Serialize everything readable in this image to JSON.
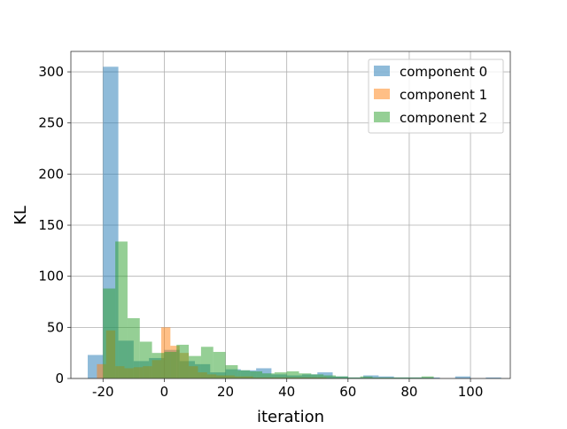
{
  "chart_data": {
    "type": "histogram",
    "title": "",
    "xlabel": "iteration",
    "ylabel": "KL",
    "xlim": [
      -30.5,
      113
    ],
    "ylim": [
      0,
      320
    ],
    "xticks": [
      "-20",
      "0",
      "20",
      "40",
      "60",
      "80",
      "100"
    ],
    "xtick_values": [
      -20,
      0,
      20,
      40,
      60,
      80,
      100
    ],
    "yticks": [
      "0",
      "50",
      "100",
      "150",
      "200",
      "250",
      "300"
    ],
    "ytick_values": [
      0,
      50,
      100,
      150,
      200,
      250,
      300
    ],
    "grid": true,
    "legend_position": "top-right",
    "series": [
      {
        "name": "component 0",
        "color": "#1f77b4",
        "opacity": 0.5,
        "bins": [
          [
            -25,
            -20,
            23
          ],
          [
            -20,
            -15,
            305
          ],
          [
            -15,
            -10,
            37
          ],
          [
            -10,
            -5,
            17
          ],
          [
            -5,
            0,
            20
          ],
          [
            0,
            5,
            28
          ],
          [
            5,
            10,
            17
          ],
          [
            10,
            15,
            14
          ],
          [
            15,
            20,
            6
          ],
          [
            20,
            25,
            9
          ],
          [
            25,
            30,
            8
          ],
          [
            30,
            35,
            10
          ],
          [
            35,
            40,
            4
          ],
          [
            40,
            45,
            3
          ],
          [
            45,
            50,
            4
          ],
          [
            50,
            55,
            6
          ],
          [
            55,
            60,
            2
          ],
          [
            60,
            65,
            1
          ],
          [
            65,
            70,
            3
          ],
          [
            70,
            75,
            2
          ],
          [
            75,
            80,
            1
          ],
          [
            80,
            85,
            1
          ],
          [
            85,
            90,
            1
          ],
          [
            90,
            95,
            0
          ],
          [
            95,
            100,
            2
          ],
          [
            100,
            105,
            0
          ],
          [
            105,
            110,
            1
          ]
        ]
      },
      {
        "name": "component 1",
        "color": "#ff7f0e",
        "opacity": 0.5,
        "bins": [
          [
            -22,
            -19,
            14
          ],
          [
            -19,
            -16,
            47
          ],
          [
            -16,
            -13,
            12
          ],
          [
            -13,
            -10,
            10
          ],
          [
            -10,
            -7,
            11
          ],
          [
            -7,
            -4,
            12
          ],
          [
            -4,
            -1,
            18
          ],
          [
            -1,
            2,
            50
          ],
          [
            2,
            5,
            32
          ],
          [
            5,
            8,
            25
          ],
          [
            8,
            11,
            12
          ],
          [
            11,
            14,
            6
          ],
          [
            14,
            17,
            4
          ],
          [
            17,
            20,
            3
          ],
          [
            20,
            23,
            3
          ],
          [
            23,
            26,
            2
          ],
          [
            26,
            29,
            2
          ],
          [
            29,
            32,
            1
          ],
          [
            32,
            35,
            1
          ],
          [
            35,
            38,
            1
          ],
          [
            38,
            41,
            1
          ],
          [
            41,
            44,
            1
          ],
          [
            44,
            47,
            1
          ],
          [
            47,
            50,
            1
          ],
          [
            50,
            53,
            1
          ]
        ]
      },
      {
        "name": "component 2",
        "color": "#2ca02c",
        "opacity": 0.5,
        "bins": [
          [
            -20,
            -16,
            88
          ],
          [
            -16,
            -12,
            134
          ],
          [
            -12,
            -8,
            59
          ],
          [
            -8,
            -4,
            36
          ],
          [
            -4,
            0,
            25
          ],
          [
            0,
            4,
            26
          ],
          [
            4,
            8,
            33
          ],
          [
            8,
            12,
            22
          ],
          [
            12,
            16,
            31
          ],
          [
            16,
            20,
            26
          ],
          [
            20,
            24,
            13
          ],
          [
            24,
            28,
            8
          ],
          [
            28,
            32,
            7
          ],
          [
            32,
            36,
            5
          ],
          [
            36,
            40,
            6
          ],
          [
            40,
            44,
            7
          ],
          [
            44,
            48,
            5
          ],
          [
            48,
            52,
            4
          ],
          [
            52,
            56,
            3
          ],
          [
            56,
            60,
            2
          ],
          [
            60,
            64,
            1
          ],
          [
            64,
            68,
            2
          ],
          [
            68,
            72,
            1
          ],
          [
            72,
            76,
            1
          ],
          [
            76,
            80,
            1
          ],
          [
            80,
            84,
            1
          ],
          [
            84,
            88,
            2
          ]
        ]
      }
    ]
  }
}
